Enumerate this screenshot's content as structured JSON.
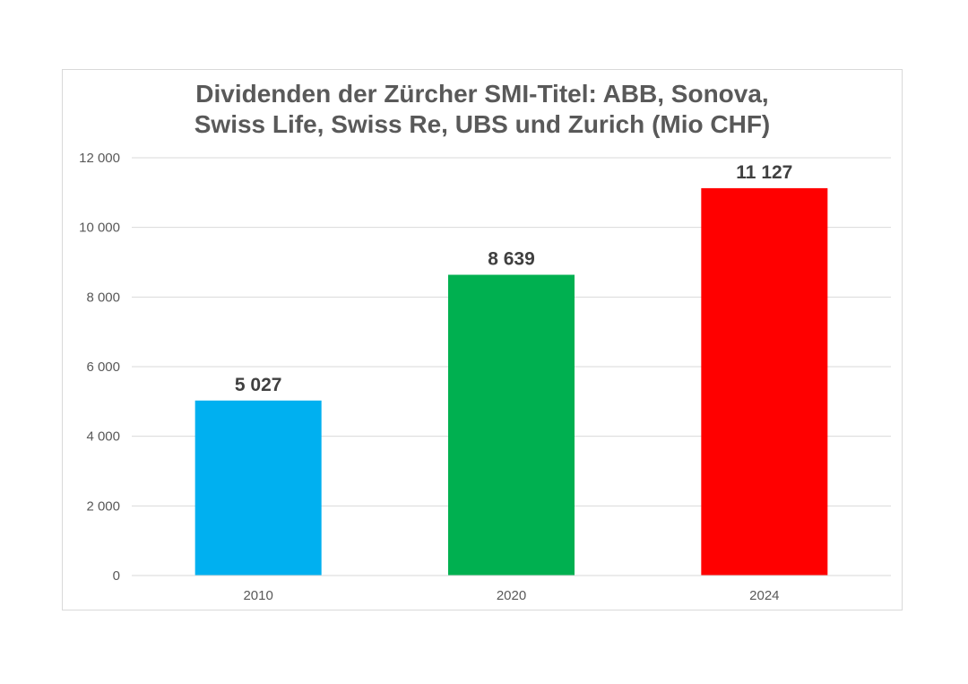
{
  "chart_data": {
    "type": "bar",
    "title_line1": "Dividenden der Zürcher SMI-Titel: ABB, Sonova,",
    "title_line2": "Swiss Life, Swiss Re, UBS und Zurich (Mio CHF)",
    "categories": [
      "2010",
      "2020",
      "2024"
    ],
    "values": [
      5027,
      8639,
      11127
    ],
    "data_labels": [
      "5 027",
      "8 639",
      "11 127"
    ],
    "colors": [
      "#00B0F0",
      "#00B050",
      "#FF0000"
    ],
    "xlabel": "",
    "ylabel": "",
    "ylim": [
      0,
      12000
    ],
    "yticks": [
      0,
      2000,
      4000,
      6000,
      8000,
      10000,
      12000
    ],
    "ytick_labels": [
      "0",
      "2 000",
      "4 000",
      "6 000",
      "8 000",
      "10 000",
      "12 000"
    ],
    "grid": true,
    "legend": "none"
  }
}
